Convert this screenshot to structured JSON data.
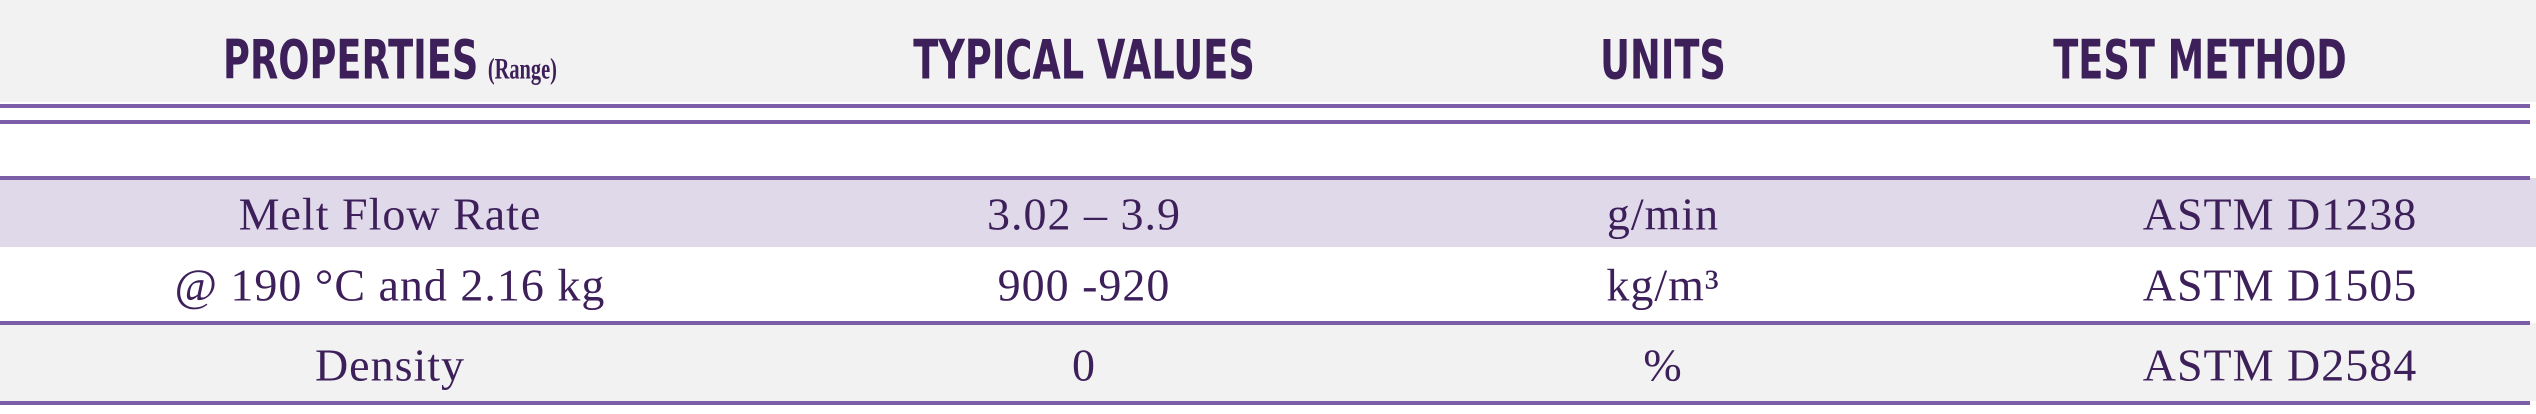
{
  "header": {
    "columns": [
      "PROPERTIES",
      "TYPICAL VALUES",
      "UNITS",
      "TEST METHOD"
    ],
    "range_note": "(Range)"
  },
  "table": {
    "rows": [
      [
        "Melt Flow Rate",
        "3.02 – 3.9",
        "g/min",
        "ASTM D1238"
      ],
      [
        "@ 190 °C and 2.16 kg",
        "900 -920",
        "kg/m³",
        "ASTM D1505"
      ],
      [
        "Density",
        "0",
        "%",
        "ASTM D2584"
      ]
    ]
  }
}
